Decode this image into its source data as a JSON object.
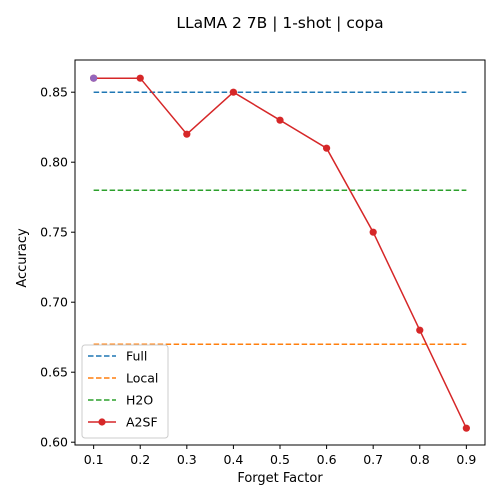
{
  "chart_data": {
    "type": "line",
    "title": "LLaMA 2 7B | 1-shot | copa",
    "xlabel": "Forget Factor",
    "ylabel": "Accuracy",
    "xlim": [
      0.06,
      0.94
    ],
    "ylim": [
      0.598,
      0.873
    ],
    "x_ticks": [
      "0.1",
      "0.2",
      "0.3",
      "0.4",
      "0.5",
      "0.6",
      "0.7",
      "0.8",
      "0.9"
    ],
    "y_ticks": [
      "0.60",
      "0.65",
      "0.70",
      "0.75",
      "0.80",
      "0.85"
    ],
    "grid": false,
    "legend_position": "lower-left",
    "baselines": [
      {
        "name": "Full",
        "value": 0.85,
        "color": "#1f77b4",
        "style": "dashed"
      },
      {
        "name": "Local",
        "value": 0.67,
        "color": "#ff7f0e",
        "style": "dashed"
      },
      {
        "name": "H2O",
        "value": 0.78,
        "color": "#2ca02c",
        "style": "dashed"
      }
    ],
    "series": [
      {
        "name": "A2SF",
        "color": "#d62728",
        "x": [
          0.1,
          0.2,
          0.3,
          0.4,
          0.5,
          0.6,
          0.7,
          0.8,
          0.9
        ],
        "y": [
          0.86,
          0.86,
          0.82,
          0.85,
          0.83,
          0.81,
          0.75,
          0.68,
          0.61
        ]
      }
    ],
    "best_point": {
      "x": 0.1,
      "y": 0.86,
      "color": "#9467bd"
    }
  }
}
